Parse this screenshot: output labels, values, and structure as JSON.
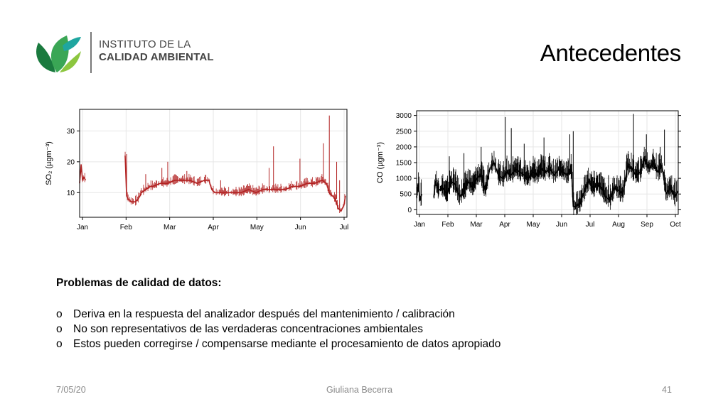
{
  "logo": {
    "line1": "INSTITUTO DE LA",
    "line2": "CALIDAD AMBIENTAL",
    "colors": {
      "leaf_dark": "#1a7a3e",
      "leaf_mid": "#3aa655",
      "leaf_light": "#8cc63f",
      "leaf_teal": "#1fa6a0"
    }
  },
  "title": "Antecedentes",
  "chart_data": [
    {
      "type": "line",
      "ylabel": "SO₂ (µgm⁻³)",
      "x_ticks": [
        "Jan",
        "Feb",
        "Mar",
        "Apr",
        "May",
        "Jun",
        "Jul"
      ],
      "y_ticks": [
        10,
        20,
        30
      ],
      "ylim": [
        2,
        37
      ],
      "xlim": [
        0,
        182
      ],
      "grid": true,
      "color": "#b22222",
      "series": [
        {
          "x": [
            0,
            1,
            2,
            3,
            4,
            31,
            32,
            33,
            35,
            38,
            40,
            42,
            45,
            48,
            50,
            55,
            60,
            65,
            70,
            75,
            80,
            85,
            88,
            90,
            92,
            95,
            98,
            100,
            105,
            110,
            115,
            120,
            125,
            130,
            135,
            140,
            145,
            150,
            155,
            160,
            165,
            168,
            170,
            172,
            174,
            176,
            178,
            180,
            181
          ],
          "y": [
            13,
            19,
            14,
            15,
            14,
            22,
            9,
            8,
            7,
            7,
            8,
            10,
            11,
            12,
            12,
            13,
            13,
            14,
            14,
            14,
            13,
            14,
            14,
            11,
            10,
            10,
            10,
            10,
            10,
            10,
            11,
            10,
            11,
            11,
            11,
            11,
            12,
            12,
            13,
            13,
            14,
            13,
            10,
            9,
            8,
            5,
            4,
            6,
            9
          ]
        }
      ],
      "spikes": [
        [
          32,
          22.5
        ],
        [
          45,
          16
        ],
        [
          56,
          18
        ],
        [
          60,
          20
        ],
        [
          73,
          17
        ],
        [
          96,
          14
        ],
        [
          129,
          18
        ],
        [
          132,
          25
        ],
        [
          150,
          21
        ],
        [
          166,
          26
        ],
        [
          170,
          35
        ],
        [
          175,
          20
        ],
        [
          177,
          14
        ]
      ]
    },
    {
      "type": "line",
      "ylabel": "CO (µgm⁻³)",
      "x_ticks": [
        "Jan",
        "Feb",
        "Mar",
        "Apr",
        "May",
        "Jun",
        "Jul",
        "Aug",
        "Sep",
        "Oct"
      ],
      "y_ticks": [
        0,
        500,
        1000,
        1500,
        2000,
        2500,
        3000
      ],
      "ylim": [
        -150,
        3150
      ],
      "xlim": [
        0,
        304
      ],
      "grid": true,
      "color": "#000000",
      "series": [
        {
          "x": [
            0,
            2,
            4,
            6,
            20,
            22,
            25,
            30,
            35,
            40,
            45,
            50,
            55,
            60,
            65,
            70,
            75,
            80,
            85,
            90,
            95,
            100,
            105,
            110,
            115,
            120,
            125,
            130,
            135,
            140,
            145,
            150,
            155,
            160,
            165,
            170,
            175,
            180,
            182,
            185,
            190,
            195,
            200,
            205,
            210,
            215,
            220,
            225,
            230,
            235,
            240,
            245,
            250,
            255,
            260,
            265,
            270,
            275,
            280,
            285,
            290,
            295,
            300,
            304
          ],
          "y": [
            400,
            800,
            300,
            500,
            400,
            900,
            600,
            700,
            500,
            900,
            800,
            400,
            600,
            900,
            700,
            1000,
            1100,
            600,
            1300,
            1500,
            1100,
            1000,
            1200,
            1100,
            1300,
            1200,
            1100,
            1000,
            1200,
            1100,
            1300,
            1200,
            1300,
            1100,
            1300,
            1200,
            1100,
            1300,
            100,
            100,
            200,
            600,
            900,
            700,
            800,
            700,
            400,
            300,
            700,
            600,
            500,
            1400,
            1300,
            1100,
            1200,
            1600,
            1300,
            1500,
            1200,
            1400,
            500,
            700,
            400,
            600
          ]
        }
      ],
      "spikes": [
        [
          38,
          1700
        ],
        [
          55,
          1800
        ],
        [
          75,
          2000
        ],
        [
          103,
          2950
        ],
        [
          110,
          2600
        ],
        [
          125,
          2100
        ],
        [
          148,
          2300
        ],
        [
          178,
          2400
        ],
        [
          182,
          2500
        ],
        [
          223,
          1100
        ],
        [
          250,
          1200
        ],
        [
          252,
          3050
        ],
        [
          267,
          2400
        ],
        [
          283,
          2000
        ],
        [
          288,
          2550
        ],
        [
          300,
          1000
        ]
      ]
    }
  ],
  "problems": {
    "heading": "Problemas de calidad de datos:",
    "bullet_char": "o",
    "items": [
      "Deriva en la respuesta del analizador después del mantenimiento / calibración",
      "No son representativos de las verdaderas concentraciones ambientales",
      "Estos pueden corregirse / compensarse mediante el procesamiento de datos apropiado"
    ]
  },
  "footer": {
    "date": "7/05/20",
    "author": "Giuliana Becerra",
    "page": "41"
  }
}
